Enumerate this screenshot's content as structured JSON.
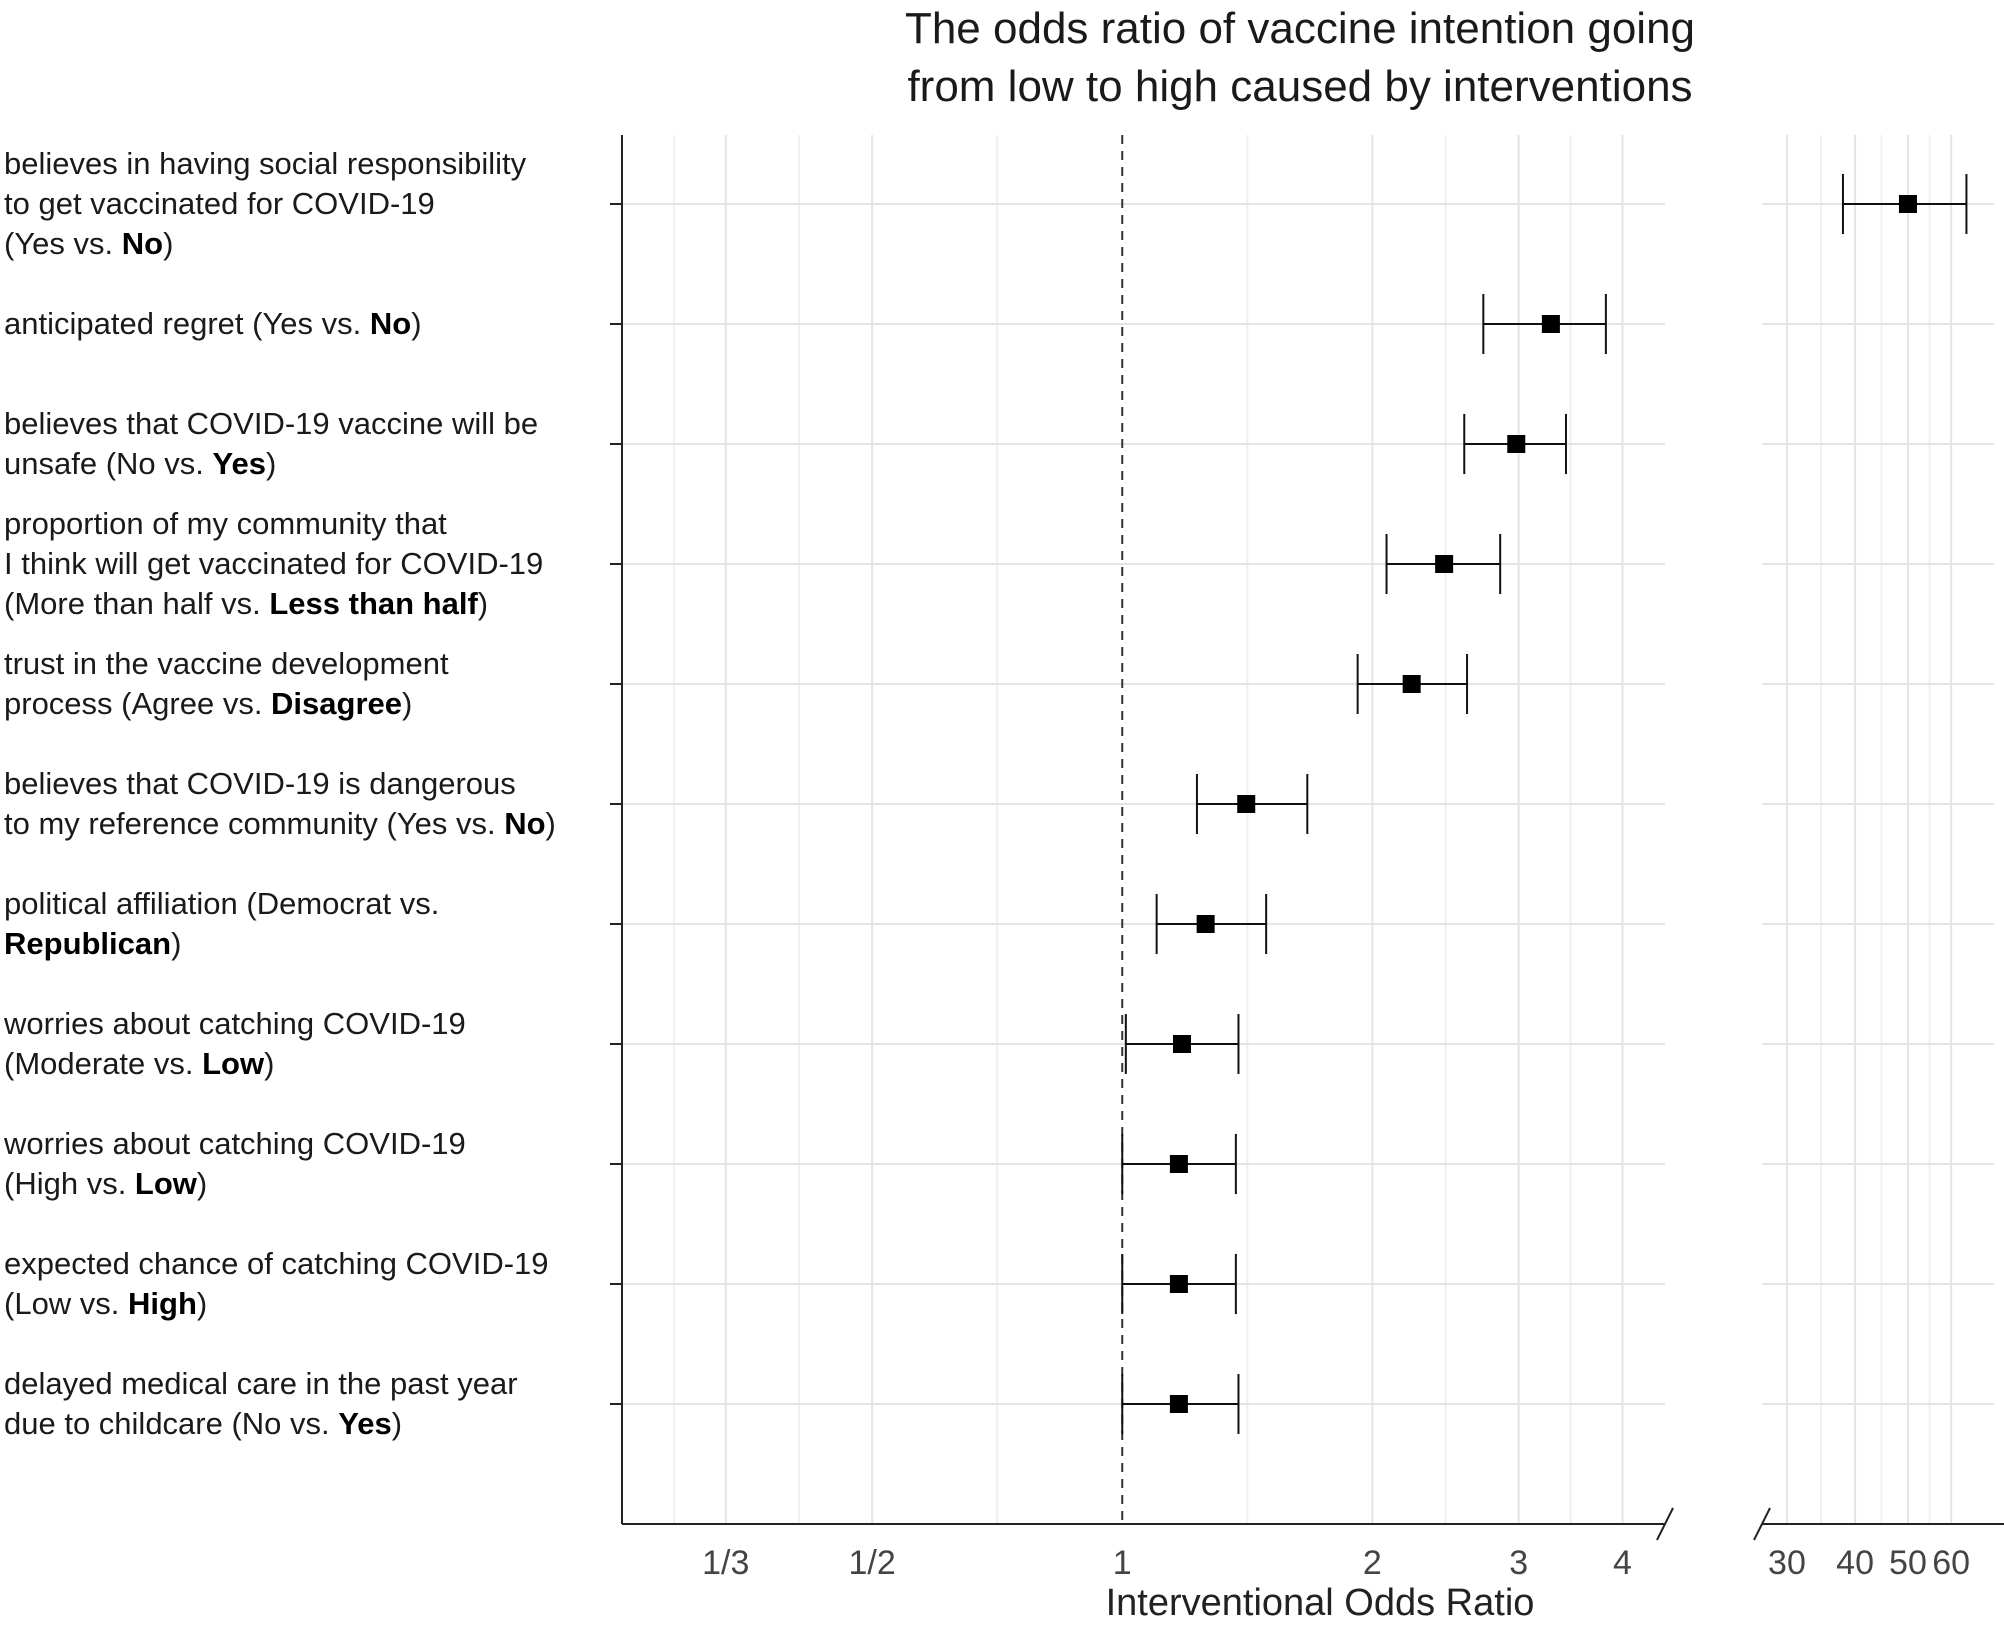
{
  "chart_data": {
    "type": "forest",
    "title_lines": [
      "The odds ratio of vaccine intention going",
      "from low to high caused by interventions"
    ],
    "xlabel": "Interventional Odds Ratio",
    "x_scale": "log",
    "reference_line": 1,
    "axis_break": true,
    "left_panel": {
      "xlim": [
        0.25,
        4.5
      ],
      "ticks": [
        0.3333,
        0.5,
        1,
        2,
        3,
        4
      ],
      "tick_labels": [
        "1/3",
        "1/2",
        "1",
        "2",
        "3",
        "4"
      ]
    },
    "right_panel": {
      "xlim": [
        27,
        75
      ],
      "ticks": [
        30,
        40,
        50,
        60
      ],
      "tick_labels": [
        "30",
        "40",
        "50",
        "60"
      ]
    },
    "rows": [
      {
        "label_lines": [
          [
            "believes in having social responsibility"
          ],
          [
            "to get vaccinated for COVID-19"
          ],
          [
            "(Yes vs. ",
            {
              "b": "No"
            },
            ")"
          ]
        ],
        "or": 50,
        "lower": 38,
        "upper": 64,
        "panel": "right"
      },
      {
        "label_lines": [
          [
            "anticipated regret (Yes vs. ",
            {
              "b": "No"
            },
            ")"
          ]
        ],
        "or": 3.28,
        "lower": 2.72,
        "upper": 3.82,
        "panel": "left"
      },
      {
        "label_lines": [
          [
            "believes that COVID-19 vaccine will be"
          ],
          [
            "unsafe (No vs. ",
            {
              "b": "Yes"
            },
            ")"
          ]
        ],
        "or": 2.98,
        "lower": 2.58,
        "upper": 3.42,
        "panel": "left"
      },
      {
        "label_lines": [
          [
            "proportion of my community that"
          ],
          [
            "I think will get vaccinated for COVID-19"
          ],
          [
            "(More than half vs. ",
            {
              "b": "Less than half"
            },
            ")"
          ]
        ],
        "or": 2.44,
        "lower": 2.08,
        "upper": 2.85,
        "panel": "left"
      },
      {
        "label_lines": [
          [
            "trust in the vaccine development"
          ],
          [
            "process (Agree vs. ",
            {
              "b": "Disagree"
            },
            ")"
          ]
        ],
        "or": 2.23,
        "lower": 1.92,
        "upper": 2.6,
        "panel": "left"
      },
      {
        "label_lines": [
          [
            "believes that COVID-19 is dangerous"
          ],
          [
            "to my reference community (Yes vs. ",
            {
              "b": "No"
            },
            ")"
          ]
        ],
        "or": 1.41,
        "lower": 1.23,
        "upper": 1.67,
        "panel": "left"
      },
      {
        "label_lines": [
          [
            "political affiliation (Democrat vs."
          ],
          [
            {
              "b": "Republican"
            },
            ")"
          ]
        ],
        "or": 1.26,
        "lower": 1.1,
        "upper": 1.49,
        "panel": "left"
      },
      {
        "label_lines": [
          [
            "worries about catching COVID-19"
          ],
          [
            "(Moderate vs. ",
            {
              "b": "Low"
            },
            ")"
          ]
        ],
        "or": 1.18,
        "lower": 1.01,
        "upper": 1.38,
        "panel": "left"
      },
      {
        "label_lines": [
          [
            "worries about catching COVID-19"
          ],
          [
            "(High vs. ",
            {
              "b": "Low"
            },
            ")"
          ]
        ],
        "or": 1.17,
        "lower": 1.0,
        "upper": 1.37,
        "panel": "left"
      },
      {
        "label_lines": [
          [
            "expected chance of catching COVID-19"
          ],
          [
            "(Low vs. ",
            {
              "b": "High"
            },
            ")"
          ]
        ],
        "or": 1.17,
        "lower": 1.0,
        "upper": 1.37,
        "panel": "left"
      },
      {
        "label_lines": [
          [
            "delayed medical care in the past year"
          ],
          [
            "due to childcare (No vs. ",
            {
              "b": "Yes"
            },
            ")"
          ]
        ],
        "or": 1.17,
        "lower": 1.0,
        "upper": 1.38,
        "panel": "left"
      }
    ]
  }
}
